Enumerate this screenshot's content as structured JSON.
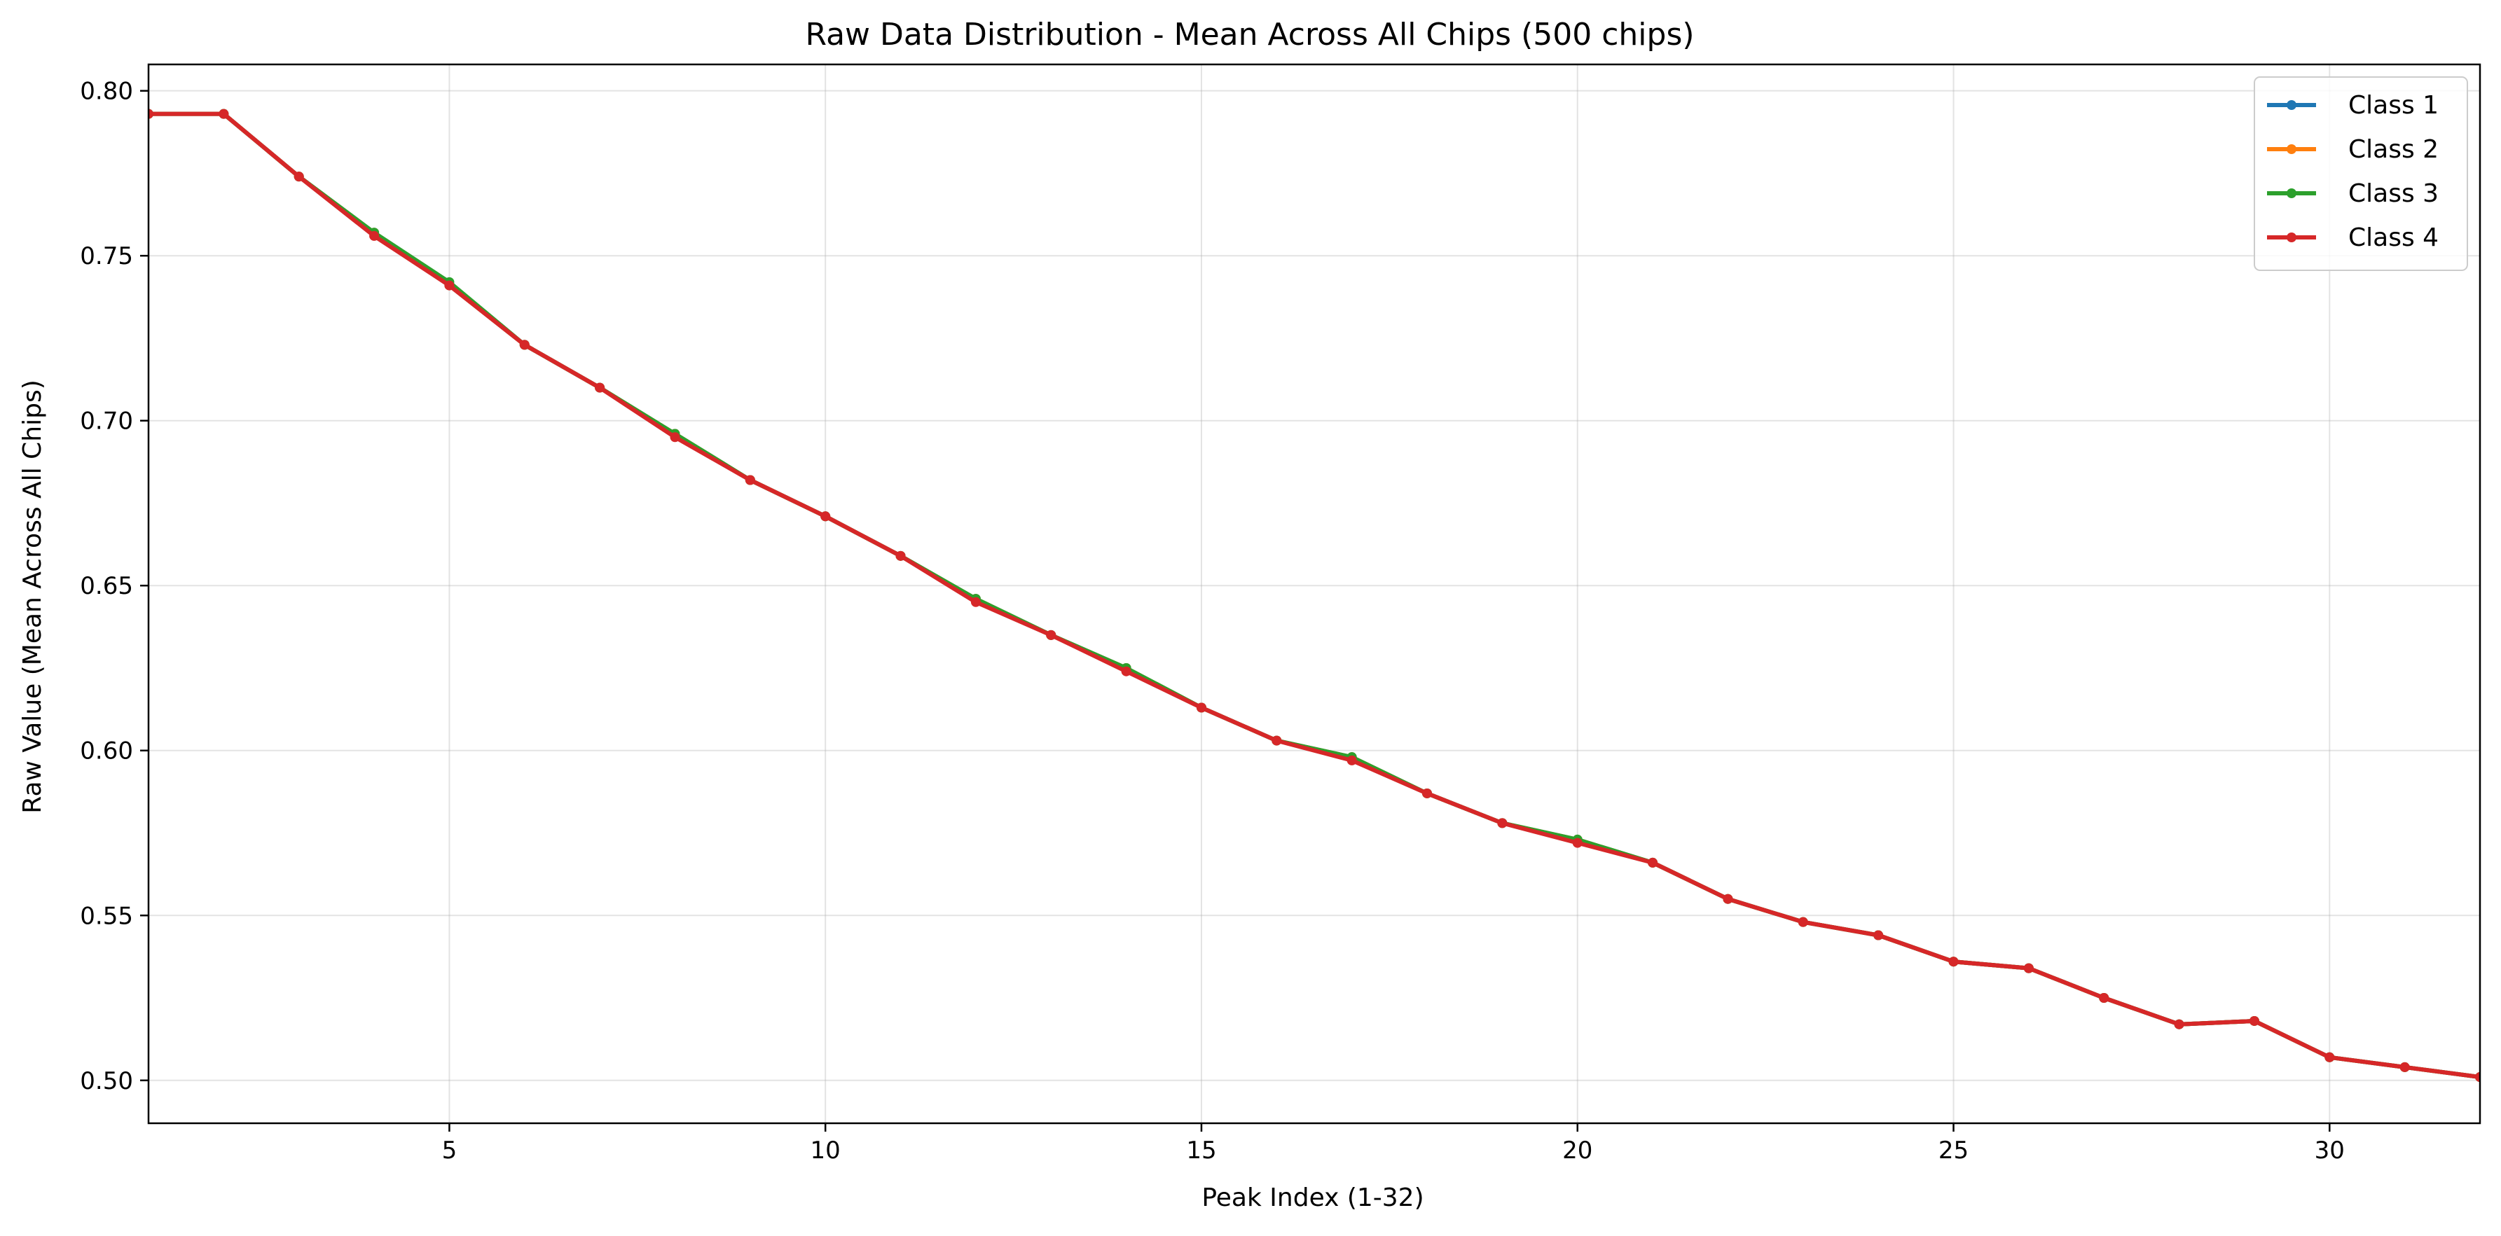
{
  "chart_data": {
    "type": "line",
    "title": "Raw Data Distribution - Mean Across All Chips (500 chips)",
    "xlabel": "Peak Index (1-32)",
    "ylabel": "Raw Value (Mean Across All Chips)",
    "xlim": [
      1,
      32
    ],
    "ylim": [
      0.487,
      0.808
    ],
    "xticks": [
      5,
      10,
      15,
      20,
      25,
      30
    ],
    "yticks": [
      0.5,
      0.55,
      0.6,
      0.65,
      0.7,
      0.75,
      0.8
    ],
    "grid": true,
    "legend_position": "top-right",
    "x": [
      1,
      2,
      3,
      4,
      5,
      6,
      7,
      8,
      9,
      10,
      11,
      12,
      13,
      14,
      15,
      16,
      17,
      18,
      19,
      20,
      21,
      22,
      23,
      24,
      25,
      26,
      27,
      28,
      29,
      30,
      31,
      32
    ],
    "series": [
      {
        "name": "Class 1",
        "color": "#1f77b4",
        "values": [
          0.793,
          0.793,
          0.774,
          0.757,
          0.741,
          0.723,
          0.71,
          0.696,
          0.682,
          0.671,
          0.659,
          0.646,
          0.635,
          0.625,
          0.613,
          0.603,
          0.598,
          0.587,
          0.578,
          0.573,
          0.566,
          0.555,
          0.548,
          0.544,
          0.536,
          0.534,
          0.525,
          0.517,
          0.518,
          0.507,
          0.504,
          0.501
        ]
      },
      {
        "name": "Class 2",
        "color": "#ff7f0e",
        "values": [
          0.793,
          0.793,
          0.774,
          0.757,
          0.741,
          0.723,
          0.71,
          0.696,
          0.682,
          0.671,
          0.659,
          0.646,
          0.635,
          0.625,
          0.613,
          0.603,
          0.598,
          0.587,
          0.578,
          0.573,
          0.566,
          0.555,
          0.548,
          0.544,
          0.536,
          0.534,
          0.525,
          0.517,
          0.518,
          0.507,
          0.504,
          0.501
        ]
      },
      {
        "name": "Class 3",
        "color": "#2ca02c",
        "values": [
          0.793,
          0.793,
          0.774,
          0.757,
          0.742,
          0.723,
          0.71,
          0.696,
          0.682,
          0.671,
          0.659,
          0.646,
          0.635,
          0.625,
          0.613,
          0.603,
          0.598,
          0.587,
          0.578,
          0.573,
          0.566,
          0.555,
          0.548,
          0.544,
          0.536,
          0.534,
          0.525,
          0.517,
          0.518,
          0.507,
          0.504,
          0.501
        ]
      },
      {
        "name": "Class 4",
        "color": "#d62728",
        "values": [
          0.793,
          0.793,
          0.774,
          0.756,
          0.741,
          0.723,
          0.71,
          0.695,
          0.682,
          0.671,
          0.659,
          0.645,
          0.635,
          0.624,
          0.613,
          0.603,
          0.597,
          0.587,
          0.578,
          0.572,
          0.566,
          0.555,
          0.548,
          0.544,
          0.536,
          0.534,
          0.525,
          0.517,
          0.518,
          0.507,
          0.504,
          0.501
        ]
      }
    ]
  }
}
